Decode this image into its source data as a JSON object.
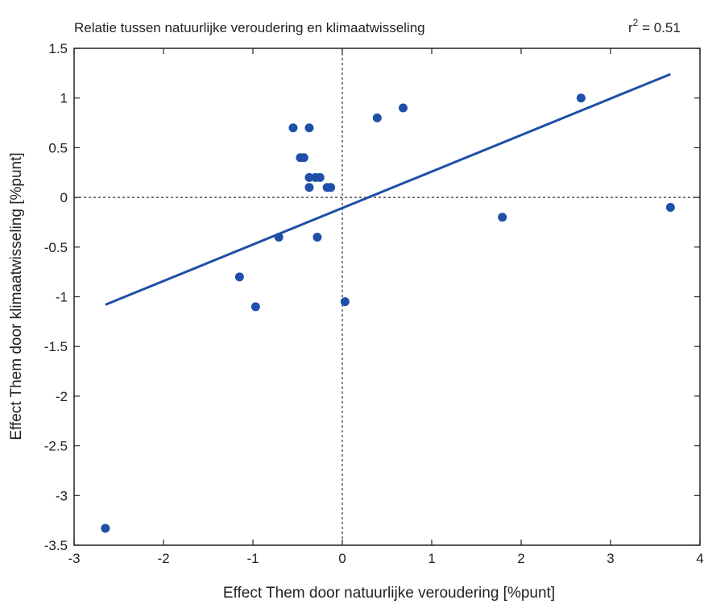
{
  "chart_data": {
    "type": "scatter",
    "title": "Relatie tussen natuurlijke veroudering en klimaatwisseling",
    "annotation": {
      "r_prefix": "r",
      "r_exponent": "2",
      "r_value": " = 0.51"
    },
    "xlabel": "Effect Them door natuurlijke veroudering [%punt]",
    "ylabel": "Effect Them door klimaatwisseling [%punt]",
    "xlim": [
      -3,
      4
    ],
    "ylim": [
      -3.5,
      1.5
    ],
    "xticks": [
      -3,
      -2,
      -1,
      0,
      1,
      2,
      3,
      4
    ],
    "xtick_labels": [
      "-3",
      "-2",
      "-1",
      "0",
      "1",
      "2",
      "3",
      "4"
    ],
    "yticks": [
      -3.5,
      -3,
      -2.5,
      -2,
      -1.5,
      -1,
      -0.5,
      0,
      0.5,
      1,
      1.5
    ],
    "ytick_labels": [
      "-3.5",
      "-3",
      "-2.5",
      "-2",
      "-1.5",
      "-1",
      "-0.5",
      "0",
      "0.5",
      "1",
      "1.5"
    ],
    "grid": false,
    "reference_lines": {
      "x_zero": true,
      "y_zero": true,
      "style": "dotted"
    },
    "points": [
      {
        "x": -2.65,
        "y": -3.33
      },
      {
        "x": -1.15,
        "y": -0.8
      },
      {
        "x": -0.97,
        "y": -1.1
      },
      {
        "x": -0.71,
        "y": -0.4
      },
      {
        "x": -0.55,
        "y": 0.7
      },
      {
        "x": -0.37,
        "y": 0.7
      },
      {
        "x": -0.47,
        "y": 0.4
      },
      {
        "x": -0.43,
        "y": 0.4
      },
      {
        "x": -0.37,
        "y": 0.2
      },
      {
        "x": -0.3,
        "y": 0.2
      },
      {
        "x": -0.25,
        "y": 0.2
      },
      {
        "x": -0.37,
        "y": 0.1
      },
      {
        "x": -0.17,
        "y": 0.1
      },
      {
        "x": -0.13,
        "y": 0.1
      },
      {
        "x": -0.28,
        "y": -0.4
      },
      {
        "x": 0.03,
        "y": -1.05
      },
      {
        "x": 0.39,
        "y": 0.8
      },
      {
        "x": 0.68,
        "y": 0.9
      },
      {
        "x": 1.79,
        "y": -0.2
      },
      {
        "x": 2.67,
        "y": 1.0
      },
      {
        "x": 3.67,
        "y": -0.1
      }
    ],
    "fit_line": {
      "x": [
        -2.65,
        3.67
      ],
      "y": [
        -1.08,
        1.24
      ]
    },
    "colors": {
      "points": "#1f4fa8",
      "fit_line": "#1f4fa8",
      "axes": "#222222",
      "reference": "#333333"
    }
  }
}
